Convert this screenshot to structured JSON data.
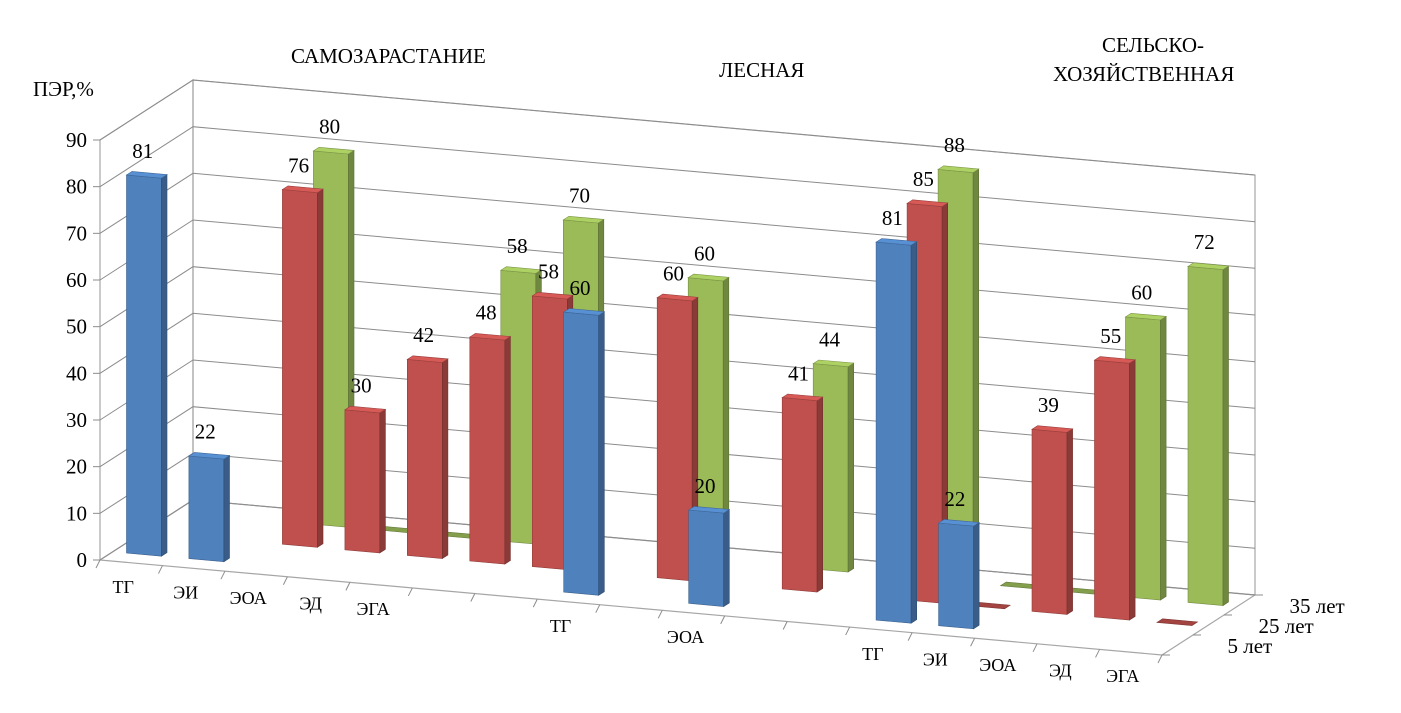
{
  "chart_data": {
    "type": "bar",
    "subtype": "3d-column",
    "title": "",
    "ylabel": "ПЭР,%",
    "ylim": [
      0,
      90
    ],
    "yticks": [
      0,
      10,
      20,
      30,
      40,
      50,
      60,
      70,
      80,
      90
    ],
    "grid": true,
    "groups": [
      {
        "name": "САМОЗАРАСТАНИЕ",
        "categories": [
          "ТГ",
          "ЭИ",
          "ЭОА",
          "ЭД",
          "ЭГА"
        ]
      },
      {
        "name": "ЛЕСНАЯ",
        "categories": [
          "ТГ",
          "ЭОА"
        ]
      },
      {
        "name": "СЕЛЬСКО-ХОЗЯЙСТВЕННАЯ",
        "name_lines": [
          "СЕЛЬСКО-",
          "ХОЗЯЙСТВЕННАЯ"
        ],
        "categories": [
          "ТГ",
          "ЭИ",
          "ЭОА",
          "ЭД",
          "ЭГА"
        ]
      }
    ],
    "x_slots": [
      "ТГ",
      "ЭИ",
      "ЭОА",
      "ЭД",
      "ЭГА",
      "",
      "",
      "ТГ",
      "",
      "ЭОА",
      "",
      "",
      "ТГ",
      "ЭИ",
      "ЭОА",
      "ЭД",
      "ЭГА"
    ],
    "depth_categories": [
      "5 лет",
      "25 лет",
      "35 лет"
    ],
    "series": [
      {
        "name": "5 лет",
        "color": "#4F81BD",
        "values": [
          81,
          22,
          null,
          null,
          null,
          null,
          null,
          60,
          null,
          20,
          null,
          null,
          81,
          22,
          null,
          null,
          null
        ]
      },
      {
        "name": "25 лет",
        "color": "#C0504D",
        "values": [
          null,
          null,
          76,
          30,
          42,
          48,
          58,
          null,
          60,
          null,
          41,
          null,
          85,
          0,
          39,
          55,
          0
        ]
      },
      {
        "name": "35 лет",
        "color": "#9BBB59",
        "values": [
          null,
          null,
          80,
          0,
          0,
          58,
          70,
          null,
          60,
          null,
          44,
          null,
          88,
          0,
          0,
          60,
          72
        ]
      }
    ]
  }
}
